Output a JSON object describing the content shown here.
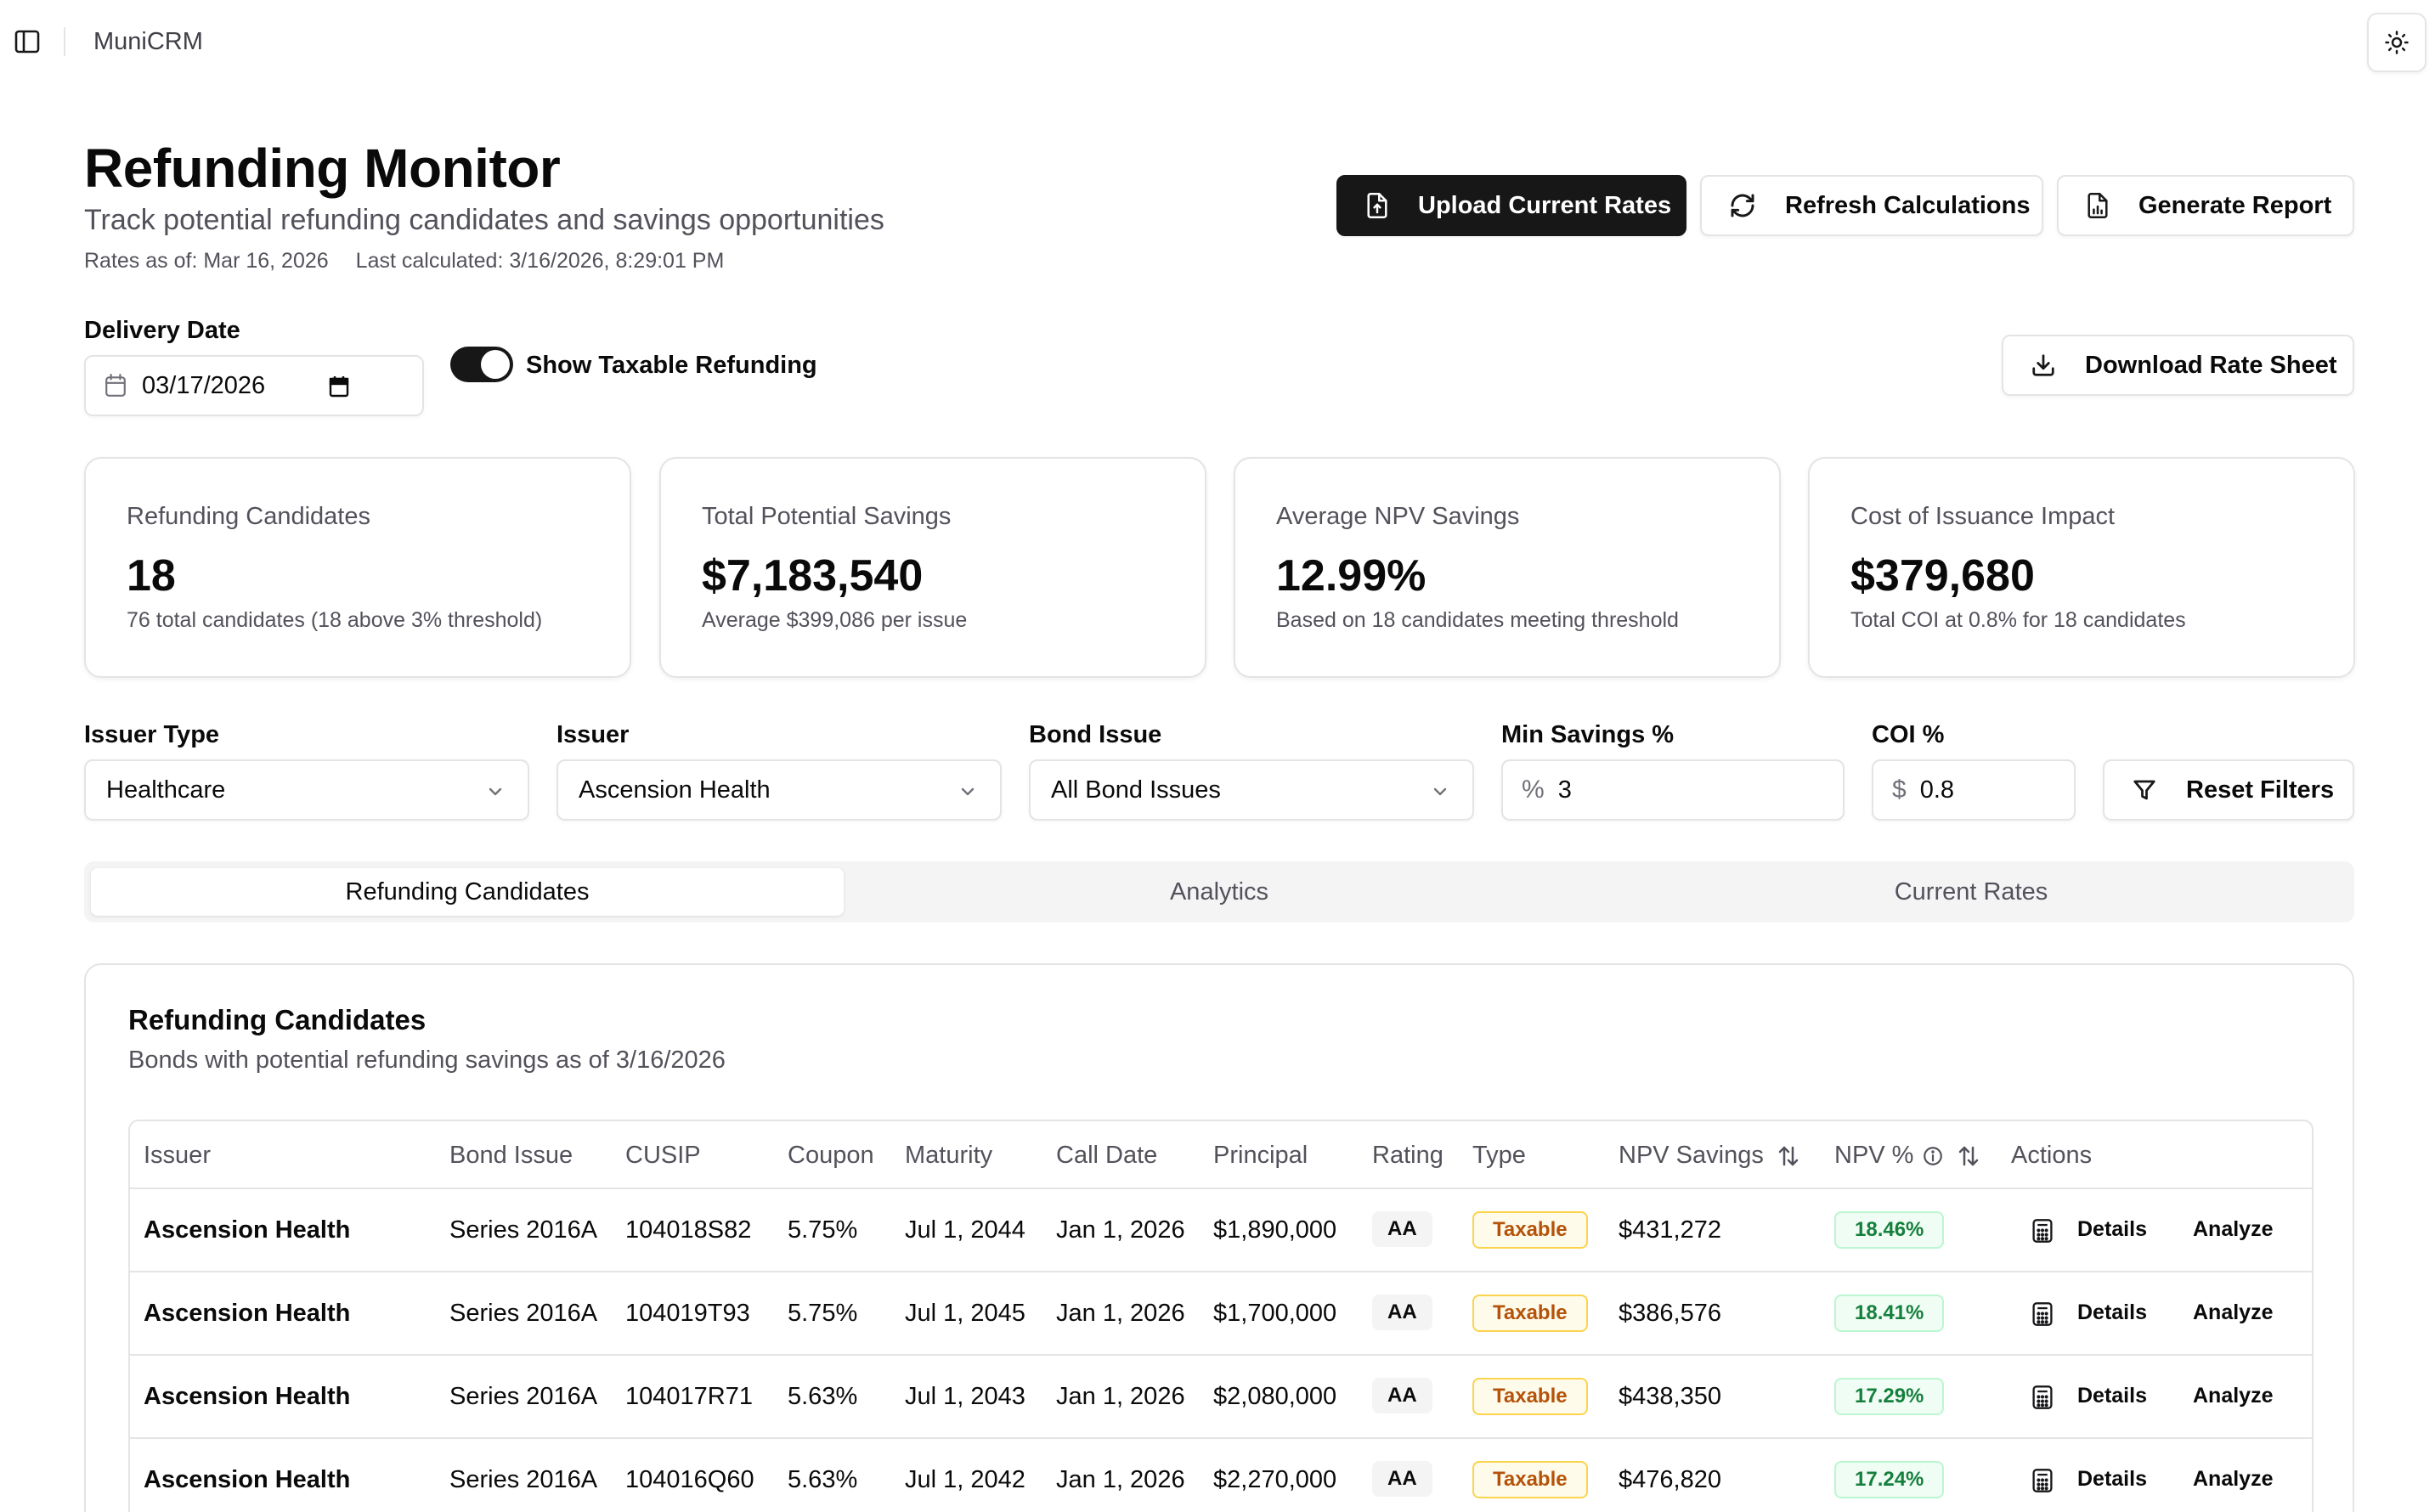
{
  "topbar": {
    "app_name": "MuniCRM"
  },
  "header": {
    "title": "Refunding Monitor",
    "subtitle": "Track potential refunding candidates and savings opportunities",
    "rates_as_of": "Rates as of: Mar 16, 2026",
    "last_calculated": "Last calculated: 3/16/2026, 8:29:01 PM",
    "upload_label": "Upload Current Rates",
    "refresh_label": "Refresh Calculations",
    "report_label": "Generate Report",
    "download_label": "Download Rate Sheet"
  },
  "delivery": {
    "label": "Delivery Date",
    "value": "03/17/2026",
    "toggle_label": "Show Taxable Refunding",
    "toggle_on": true
  },
  "stats": [
    {
      "label": "Refunding Candidates",
      "value": "18",
      "sub": "76 total candidates (18 above 3% threshold)"
    },
    {
      "label": "Total Potential Savings",
      "value": "$7,183,540",
      "sub": "Average $399,086 per issue"
    },
    {
      "label": "Average NPV Savings",
      "value": "12.99%",
      "sub": "Based on 18 candidates meeting threshold"
    },
    {
      "label": "Cost of Issuance Impact",
      "value": "$379,680",
      "sub": "Total COI at 0.8% for 18 candidates"
    }
  ],
  "filters": {
    "issuer_type_label": "Issuer Type",
    "issuer_type_value": "Healthcare",
    "issuer_label": "Issuer",
    "issuer_value": "Ascension Health",
    "bond_issue_label": "Bond Issue",
    "bond_issue_value": "All Bond Issues",
    "min_savings_label": "Min Savings %",
    "min_savings_prefix": "%",
    "min_savings_value": "3",
    "coi_label": "COI %",
    "coi_prefix": "$",
    "coi_value": "0.8",
    "reset_label": "Reset Filters"
  },
  "tabs": [
    {
      "label": "Refunding Candidates",
      "active": true
    },
    {
      "label": "Analytics",
      "active": false
    },
    {
      "label": "Current Rates",
      "active": false
    }
  ],
  "table_card": {
    "title": "Refunding Candidates",
    "subtitle": "Bonds with potential refunding savings as of 3/16/2026",
    "columns": [
      "Issuer",
      "Bond Issue",
      "CUSIP",
      "Coupon",
      "Maturity",
      "Call Date",
      "Principal",
      "Rating",
      "Type",
      "NPV Savings",
      "NPV %",
      "Actions"
    ],
    "details_label": "Details",
    "analyze_label": "Analyze",
    "rows": [
      {
        "issuer": "Ascension Health",
        "bond_issue": "Series 2016A",
        "cusip": "104018S82",
        "coupon": "5.75%",
        "maturity": "Jul 1, 2044",
        "call_date": "Jan 1, 2026",
        "principal": "$1,890,000",
        "rating": "AA",
        "type": "Taxable",
        "npv_savings": "$431,272",
        "npv_pct": "18.46%"
      },
      {
        "issuer": "Ascension Health",
        "bond_issue": "Series 2016A",
        "cusip": "104019T93",
        "coupon": "5.75%",
        "maturity": "Jul 1, 2045",
        "call_date": "Jan 1, 2026",
        "principal": "$1,700,000",
        "rating": "AA",
        "type": "Taxable",
        "npv_savings": "$386,576",
        "npv_pct": "18.41%"
      },
      {
        "issuer": "Ascension Health",
        "bond_issue": "Series 2016A",
        "cusip": "104017R71",
        "coupon": "5.63%",
        "maturity": "Jul 1, 2043",
        "call_date": "Jan 1, 2026",
        "principal": "$2,080,000",
        "rating": "AA",
        "type": "Taxable",
        "npv_savings": "$438,350",
        "npv_pct": "17.29%"
      },
      {
        "issuer": "Ascension Health",
        "bond_issue": "Series 2016A",
        "cusip": "104016Q60",
        "coupon": "5.63%",
        "maturity": "Jul 1, 2042",
        "call_date": "Jan 1, 2026",
        "principal": "$2,270,000",
        "rating": "AA",
        "type": "Taxable",
        "npv_savings": "$476,820",
        "npv_pct": "17.24%"
      }
    ]
  }
}
